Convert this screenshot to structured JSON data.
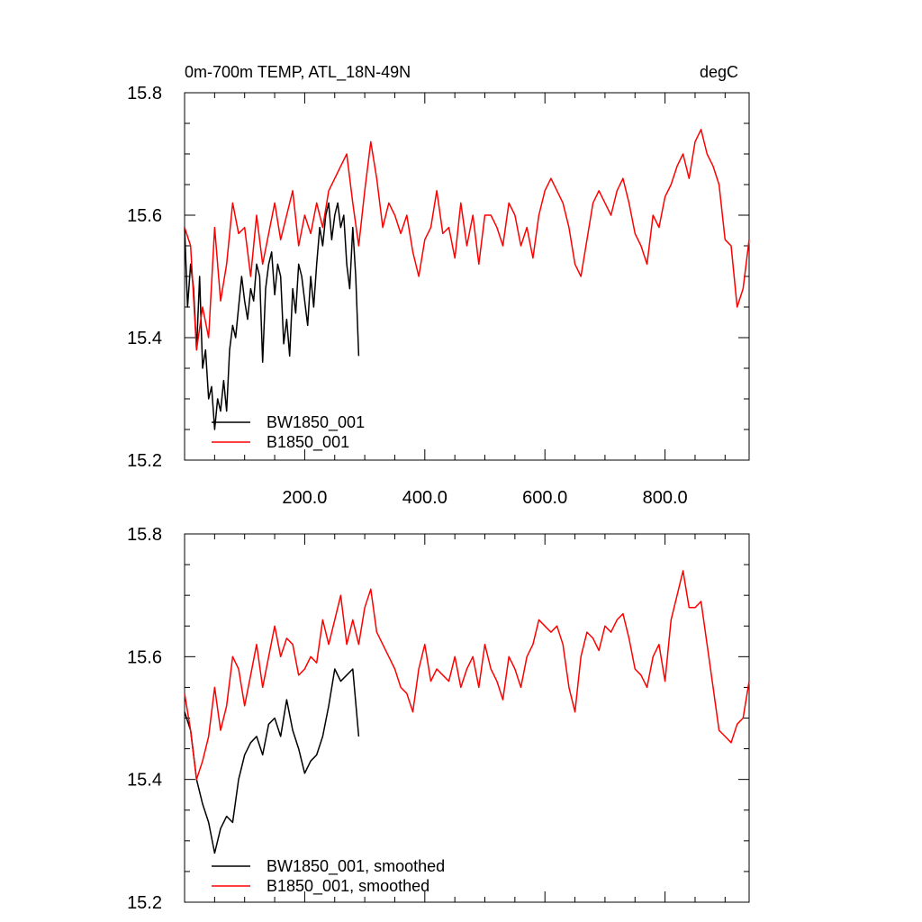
{
  "chart_data": [
    {
      "type": "line",
      "title": "0m-700m TEMP, ATL_18N-49N",
      "units_label": "degC",
      "xlim": [
        0,
        940
      ],
      "ylim": [
        15.2,
        15.8
      ],
      "x_tick_labels": [
        "200.0",
        "400.0",
        "600.0",
        "800.0"
      ],
      "y_tick_labels": [
        "15.2",
        "15.4",
        "15.6",
        "15.8"
      ],
      "legend_position": "bottom-left",
      "grid": false,
      "series": [
        {
          "name": "BW1850_001",
          "color": "#000000",
          "x": [
            0,
            5,
            10,
            15,
            20,
            25,
            30,
            35,
            40,
            45,
            50,
            55,
            60,
            65,
            70,
            75,
            80,
            85,
            90,
            95,
            100,
            105,
            110,
            115,
            120,
            125,
            130,
            135,
            140,
            145,
            150,
            155,
            160,
            165,
            170,
            175,
            180,
            185,
            190,
            195,
            200,
            205,
            210,
            215,
            220,
            225,
            230,
            235,
            240,
            245,
            250,
            255,
            260,
            265,
            270,
            275,
            280,
            285,
            290
          ],
          "values": [
            15.58,
            15.45,
            15.52,
            15.48,
            15.38,
            15.5,
            15.35,
            15.38,
            15.3,
            15.32,
            15.25,
            15.3,
            15.28,
            15.33,
            15.28,
            15.38,
            15.42,
            15.4,
            15.45,
            15.5,
            15.46,
            15.43,
            15.48,
            15.46,
            15.52,
            15.5,
            15.36,
            15.48,
            15.52,
            15.54,
            15.47,
            15.52,
            15.5,
            15.39,
            15.43,
            15.37,
            15.48,
            15.44,
            15.52,
            15.5,
            15.46,
            15.42,
            15.5,
            15.45,
            15.52,
            15.58,
            15.55,
            15.6,
            15.62,
            15.56,
            15.6,
            15.62,
            15.58,
            15.6,
            15.52,
            15.48,
            15.58,
            15.5,
            15.37
          ]
        },
        {
          "name": "B1850_001",
          "color": "#ff0000",
          "x": [
            0,
            10,
            20,
            30,
            40,
            50,
            60,
            70,
            80,
            90,
            100,
            110,
            120,
            130,
            140,
            150,
            160,
            170,
            180,
            190,
            200,
            210,
            220,
            230,
            240,
            250,
            260,
            270,
            280,
            290,
            300,
            310,
            320,
            330,
            340,
            350,
            360,
            370,
            380,
            390,
            400,
            410,
            420,
            430,
            440,
            450,
            460,
            470,
            480,
            490,
            500,
            510,
            520,
            530,
            540,
            550,
            560,
            570,
            580,
            590,
            600,
            610,
            620,
            630,
            640,
            650,
            660,
            670,
            680,
            690,
            700,
            710,
            720,
            730,
            740,
            750,
            760,
            770,
            780,
            790,
            800,
            810,
            820,
            830,
            840,
            850,
            860,
            870,
            880,
            890,
            900,
            910,
            920,
            930,
            940
          ],
          "values": [
            15.58,
            15.55,
            15.38,
            15.45,
            15.4,
            15.58,
            15.46,
            15.52,
            15.62,
            15.57,
            15.58,
            15.5,
            15.6,
            15.52,
            15.57,
            15.62,
            15.56,
            15.6,
            15.64,
            15.55,
            15.6,
            15.57,
            15.62,
            15.58,
            15.64,
            15.66,
            15.68,
            15.7,
            15.62,
            15.55,
            15.64,
            15.72,
            15.66,
            15.58,
            15.62,
            15.6,
            15.57,
            15.6,
            15.54,
            15.5,
            15.56,
            15.58,
            15.64,
            15.57,
            15.58,
            15.53,
            15.62,
            15.55,
            15.6,
            15.52,
            15.6,
            15.6,
            15.58,
            15.55,
            15.62,
            15.6,
            15.55,
            15.58,
            15.53,
            15.6,
            15.64,
            15.66,
            15.64,
            15.62,
            15.58,
            15.52,
            15.5,
            15.56,
            15.62,
            15.64,
            15.62,
            15.6,
            15.64,
            15.66,
            15.62,
            15.57,
            15.55,
            15.52,
            15.6,
            15.58,
            15.63,
            15.65,
            15.68,
            15.7,
            15.66,
            15.72,
            15.74,
            15.7,
            15.68,
            15.65,
            15.56,
            15.55,
            15.45,
            15.48,
            15.56
          ]
        }
      ]
    },
    {
      "type": "line",
      "xlim": [
        0,
        940
      ],
      "ylim": [
        15.2,
        15.8
      ],
      "y_tick_labels": [
        "15.2",
        "15.4",
        "15.6",
        "15.8"
      ],
      "legend_position": "bottom-left",
      "grid": false,
      "series": [
        {
          "name": "BW1850_001, smoothed",
          "color": "#000000",
          "x": [
            0,
            10,
            20,
            30,
            40,
            50,
            60,
            70,
            80,
            90,
            100,
            110,
            120,
            130,
            140,
            150,
            160,
            170,
            180,
            190,
            200,
            210,
            220,
            230,
            240,
            250,
            260,
            270,
            280,
            290
          ],
          "values": [
            15.51,
            15.48,
            15.4,
            15.36,
            15.33,
            15.28,
            15.32,
            15.34,
            15.33,
            15.4,
            15.44,
            15.46,
            15.47,
            15.44,
            15.49,
            15.5,
            15.47,
            15.53,
            15.48,
            15.45,
            15.41,
            15.43,
            15.44,
            15.47,
            15.52,
            15.58,
            15.56,
            15.57,
            15.58,
            15.47
          ]
        },
        {
          "name": "B1850_001, smoothed",
          "color": "#ff0000",
          "x": [
            0,
            10,
            20,
            30,
            40,
            50,
            60,
            70,
            80,
            90,
            100,
            110,
            120,
            130,
            140,
            150,
            160,
            170,
            180,
            190,
            200,
            210,
            220,
            230,
            240,
            250,
            260,
            270,
            280,
            290,
            300,
            310,
            320,
            330,
            340,
            350,
            360,
            370,
            380,
            390,
            400,
            410,
            420,
            430,
            440,
            450,
            460,
            470,
            480,
            490,
            500,
            510,
            520,
            530,
            540,
            550,
            560,
            570,
            580,
            590,
            600,
            610,
            620,
            630,
            640,
            650,
            660,
            670,
            680,
            690,
            700,
            710,
            720,
            730,
            740,
            750,
            760,
            770,
            780,
            790,
            800,
            810,
            820,
            830,
            840,
            850,
            860,
            870,
            880,
            890,
            900,
            910,
            920,
            930,
            940
          ],
          "values": [
            15.54,
            15.48,
            15.4,
            15.43,
            15.47,
            15.55,
            15.48,
            15.52,
            15.6,
            15.58,
            15.52,
            15.57,
            15.62,
            15.55,
            15.6,
            15.65,
            15.6,
            15.63,
            15.62,
            15.57,
            15.58,
            15.6,
            15.59,
            15.66,
            15.62,
            15.66,
            15.7,
            15.62,
            15.66,
            15.62,
            15.68,
            15.71,
            15.64,
            15.62,
            15.6,
            15.58,
            15.55,
            15.54,
            15.51,
            15.58,
            15.62,
            15.56,
            15.58,
            15.57,
            15.56,
            15.6,
            15.55,
            15.58,
            15.6,
            15.55,
            15.62,
            15.58,
            15.56,
            15.53,
            15.6,
            15.58,
            15.55,
            15.6,
            15.62,
            15.66,
            15.65,
            15.64,
            15.65,
            15.62,
            15.55,
            15.51,
            15.6,
            15.64,
            15.63,
            15.61,
            15.65,
            15.64,
            15.66,
            15.67,
            15.63,
            15.58,
            15.57,
            15.55,
            15.6,
            15.62,
            15.56,
            15.66,
            15.7,
            15.74,
            15.68,
            15.68,
            15.69,
            15.62,
            15.55,
            15.48,
            15.47,
            15.46,
            15.49,
            15.5,
            15.56
          ]
        }
      ]
    }
  ]
}
